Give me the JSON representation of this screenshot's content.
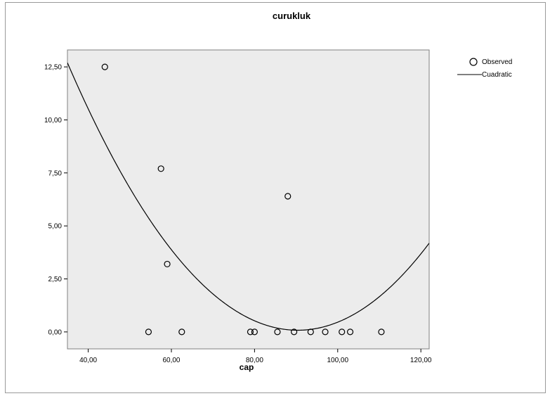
{
  "chart_data": {
    "type": "scatter",
    "title": "curukluk",
    "xlabel": "cap",
    "ylabel": "",
    "xlim": [
      35,
      122
    ],
    "ylim": [
      -0.8,
      13.3
    ],
    "x_ticks": [
      40,
      60,
      80,
      100,
      120
    ],
    "x_tick_labels": [
      "40,00",
      "60,00",
      "80,00",
      "100,00",
      "120,00"
    ],
    "y_ticks": [
      0,
      2.5,
      5,
      7.5,
      10,
      12.5
    ],
    "y_tick_labels": [
      "0,00",
      "2,50",
      "5,00",
      "7,50",
      "10,00",
      "12,50"
    ],
    "series": [
      {
        "name": "Observed",
        "kind": "scatter",
        "points": [
          {
            "x": 44,
            "y": 12.5
          },
          {
            "x": 57.5,
            "y": 7.7
          },
          {
            "x": 59,
            "y": 3.2
          },
          {
            "x": 88,
            "y": 6.4
          },
          {
            "x": 54.5,
            "y": 0
          },
          {
            "x": 62.5,
            "y": 0
          },
          {
            "x": 79,
            "y": 0
          },
          {
            "x": 80,
            "y": 0
          },
          {
            "x": 85.5,
            "y": 0
          },
          {
            "x": 89.5,
            "y": 0
          },
          {
            "x": 93.5,
            "y": 0
          },
          {
            "x": 97,
            "y": 0
          },
          {
            "x": 101,
            "y": 0
          },
          {
            "x": 103,
            "y": 0
          },
          {
            "x": 110.5,
            "y": 0
          }
        ]
      },
      {
        "name": "Cuadratic",
        "kind": "line",
        "equation": "y = 0.00411*(x - 90.4)^2 + 0.08",
        "coefficients": {
          "a": 0.00411,
          "vertex_x": 90.4,
          "vertex_y": 0.08
        }
      }
    ],
    "grid": false,
    "legend": "top-right",
    "plot_background": "#ececec",
    "marker_color": "#000000",
    "line_color": "#000000"
  }
}
